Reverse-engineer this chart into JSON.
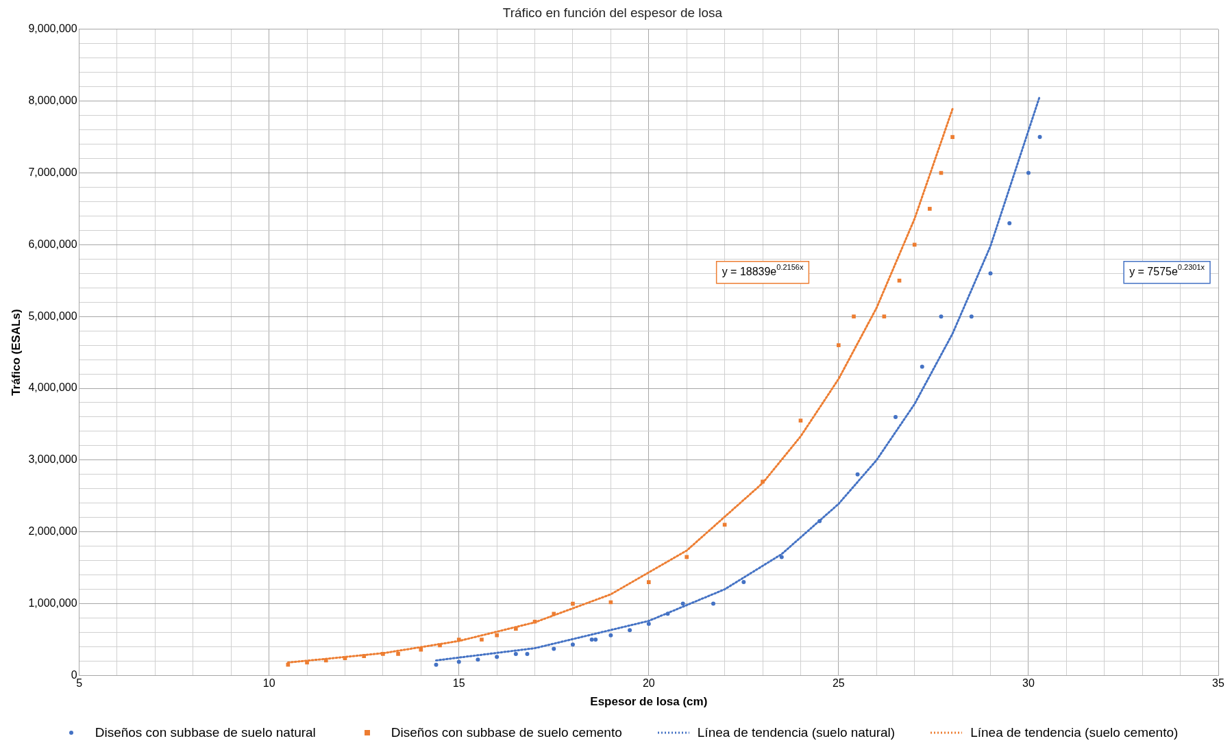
{
  "chart_data": {
    "type": "scatter",
    "title": "Tráfico en función del espesor de losa",
    "xlabel": "Espesor de losa (cm)",
    "ylabel": "Tráfico (ESALs)",
    "xlim": [
      5,
      35
    ],
    "xticks": [
      5,
      {
        "value": 6,
        "label": null
      },
      {
        "value": 7,
        "label": null
      },
      {
        "value": 8,
        "label": null
      },
      {
        "value": 9,
        "label": null
      },
      10,
      {
        "value": 11,
        "label": null
      },
      {
        "value": 12,
        "label": null
      },
      {
        "value": 13,
        "label": null
      },
      {
        "value": 14,
        "label": null
      },
      15,
      {
        "value": 16,
        "label": null
      },
      {
        "value": 17,
        "label": null
      },
      {
        "value": 18,
        "label": null
      },
      {
        "value": 19,
        "label": null
      },
      20,
      {
        "value": 21,
        "label": null
      },
      {
        "value": 22,
        "label": null
      },
      {
        "value": 23,
        "label": null
      },
      {
        "value": 24,
        "label": null
      },
      25,
      {
        "value": 26,
        "label": null
      },
      {
        "value": 27,
        "label": null
      },
      {
        "value": 28,
        "label": null
      },
      {
        "value": 29,
        "label": null
      },
      30,
      {
        "value": 31,
        "label": null
      },
      {
        "value": 32,
        "label": null
      },
      {
        "value": 33,
        "label": null
      },
      {
        "value": 34,
        "label": null
      },
      35
    ],
    "ylim": [
      0,
      9000000
    ],
    "yticks": [
      0,
      {
        "value": 200000,
        "label": null
      },
      {
        "value": 400000,
        "label": null
      },
      {
        "value": 600000,
        "label": null
      },
      {
        "value": 800000,
        "label": null
      },
      {
        "value": 1000000,
        "label": "1,000,000"
      },
      {
        "value": 1200000,
        "label": null
      },
      {
        "value": 1400000,
        "label": null
      },
      {
        "value": 1600000,
        "label": null
      },
      {
        "value": 1800000,
        "label": null
      },
      {
        "value": 2000000,
        "label": "2,000,000"
      },
      {
        "value": 2200000,
        "label": null
      },
      {
        "value": 2400000,
        "label": null
      },
      {
        "value": 2600000,
        "label": null
      },
      {
        "value": 2800000,
        "label": null
      },
      {
        "value": 3000000,
        "label": "3,000,000"
      },
      {
        "value": 3200000,
        "label": null
      },
      {
        "value": 3400000,
        "label": null
      },
      {
        "value": 3600000,
        "label": null
      },
      {
        "value": 3800000,
        "label": null
      },
      {
        "value": 4000000,
        "label": "4,000,000"
      },
      {
        "value": 4200000,
        "label": null
      },
      {
        "value": 4400000,
        "label": null
      },
      {
        "value": 4600000,
        "label": null
      },
      {
        "value": 4800000,
        "label": null
      },
      {
        "value": 5000000,
        "label": "5,000,000"
      },
      {
        "value": 5200000,
        "label": null
      },
      {
        "value": 5400000,
        "label": null
      },
      {
        "value": 5600000,
        "label": null
      },
      {
        "value": 5800000,
        "label": null
      },
      {
        "value": 6000000,
        "label": "6,000,000"
      },
      {
        "value": 6200000,
        "label": null
      },
      {
        "value": 6400000,
        "label": null
      },
      {
        "value": 6600000,
        "label": null
      },
      {
        "value": 6800000,
        "label": null
      },
      {
        "value": 7000000,
        "label": "7,000,000"
      },
      {
        "value": 7200000,
        "label": null
      },
      {
        "value": 7400000,
        "label": null
      },
      {
        "value": 7600000,
        "label": null
      },
      {
        "value": 7800000,
        "label": null
      },
      {
        "value": 8000000,
        "label": "8,000,000"
      },
      {
        "value": 8200000,
        "label": null
      },
      {
        "value": 8400000,
        "label": null
      },
      {
        "value": 8600000,
        "label": null
      },
      {
        "value": 8800000,
        "label": null
      },
      {
        "value": 9000000,
        "label": "9,000,000"
      }
    ],
    "grid": true,
    "legend": "bottom",
    "series": [
      {
        "name": "Diseños con subbase de suelo natural",
        "type": "scatter",
        "marker": "circle",
        "color": "#4472c4",
        "x": [
          14.4,
          15,
          15.5,
          16,
          16.5,
          16.8,
          17.5,
          18,
          18.5,
          18.6,
          19,
          19.5,
          20,
          20.5,
          20.9,
          21.7,
          22.5,
          23.5,
          24.5,
          25.5,
          26.5,
          27.2,
          27.7,
          28.5,
          29,
          29.5,
          30,
          30.3
        ],
        "values": [
          150000,
          190000,
          220000,
          260000,
          300000,
          300000,
          370000,
          430000,
          500000,
          500000,
          560000,
          630000,
          720000,
          860000,
          1000000,
          1000000,
          1300000,
          1650000,
          2150000,
          2800000,
          3600000,
          4300000,
          5000000,
          5000000,
          5600000,
          6300000,
          7000000,
          7500000
        ]
      },
      {
        "name": "Diseños con subbase de suelo cemento",
        "type": "scatter",
        "marker": "square",
        "color": "#ed7d31",
        "x": [
          10.5,
          11,
          11.5,
          12,
          12.5,
          13,
          13.4,
          14,
          14.5,
          15,
          15.6,
          16,
          16.5,
          17,
          17.5,
          18,
          19,
          20,
          21,
          22,
          23,
          24,
          25,
          25.4,
          26.2,
          26.6,
          27,
          27.4,
          27.7,
          28
        ],
        "values": [
          150000,
          180000,
          210000,
          240000,
          270000,
          300000,
          300000,
          360000,
          420000,
          500000,
          500000,
          560000,
          650000,
          750000,
          860000,
          1000000,
          1020000,
          1300000,
          1650000,
          2100000,
          2700000,
          3550000,
          4600000,
          5000000,
          5000000,
          5500000,
          6000000,
          6500000,
          7000000,
          7500000
        ]
      },
      {
        "name": "Línea de tendencia (suelo natural)",
        "type": "line",
        "marker": "none",
        "line_style": "dotted",
        "color": "#4472c4",
        "x": [
          14.4,
          17,
          20,
          22,
          23.5,
          25,
          26,
          27,
          28,
          29,
          30.3
        ],
        "values": [
          210000,
          380000,
          760000,
          1200000,
          1690000,
          2390000,
          3000000,
          3780000,
          4760000,
          5980000,
          8070000
        ]
      },
      {
        "name": "Línea de tendencia (suelo cemento)",
        "type": "line",
        "marker": "none",
        "line_style": "dotted",
        "color": "#ed7d31",
        "x": [
          10.5,
          13,
          15,
          17,
          19,
          21,
          23,
          24,
          25,
          26,
          27,
          28
        ],
        "values": [
          180000,
          310000,
          480000,
          740000,
          1130000,
          1740000,
          2680000,
          3330000,
          4130000,
          5120000,
          6360000,
          7890000
        ]
      }
    ],
    "annotations": [
      "y = 18839e$^{0.2156x}$",
      "y = 7575e$^{0.2301x}$"
    ]
  }
}
